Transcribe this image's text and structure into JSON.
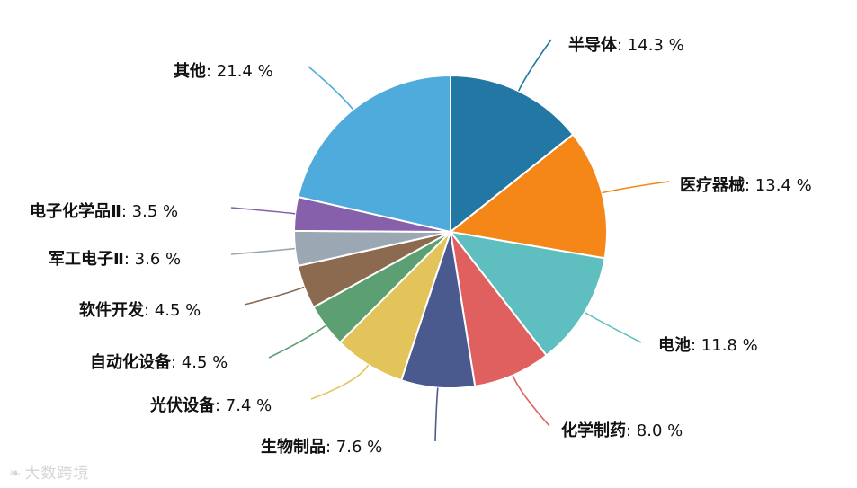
{
  "chart_data": {
    "type": "pie",
    "title": "",
    "slices": [
      {
        "label": "半导体",
        "value": 14.3,
        "color": "#2277a4"
      },
      {
        "label": "医疗器械",
        "value": 13.4,
        "color": "#f58718"
      },
      {
        "label": "电池",
        "value": 11.8,
        "color": "#5fbec0"
      },
      {
        "label": "化学制药",
        "value": 8.0,
        "color": "#e06060"
      },
      {
        "label": "生物制品",
        "value": 7.6,
        "color": "#4a5a8f"
      },
      {
        "label": "光伏设备",
        "value": 7.4,
        "color": "#e2c45a"
      },
      {
        "label": "自动化设备",
        "value": 4.5,
        "color": "#5c9f72"
      },
      {
        "label": "软件开发",
        "value": 4.5,
        "color": "#8c6a50"
      },
      {
        "label": "军工电子Ⅱ",
        "value": 3.6,
        "color": "#9ba8b4"
      },
      {
        "label": "电子化学品Ⅱ",
        "value": 3.5,
        "color": "#8660ab"
      },
      {
        "label": "其他",
        "value": 21.4,
        "color": "#4fabdb"
      }
    ],
    "value_suffix": " %",
    "legend": "none"
  },
  "watermark": {
    "text": "大数跨境",
    "icon": "watermark-logo-icon"
  }
}
